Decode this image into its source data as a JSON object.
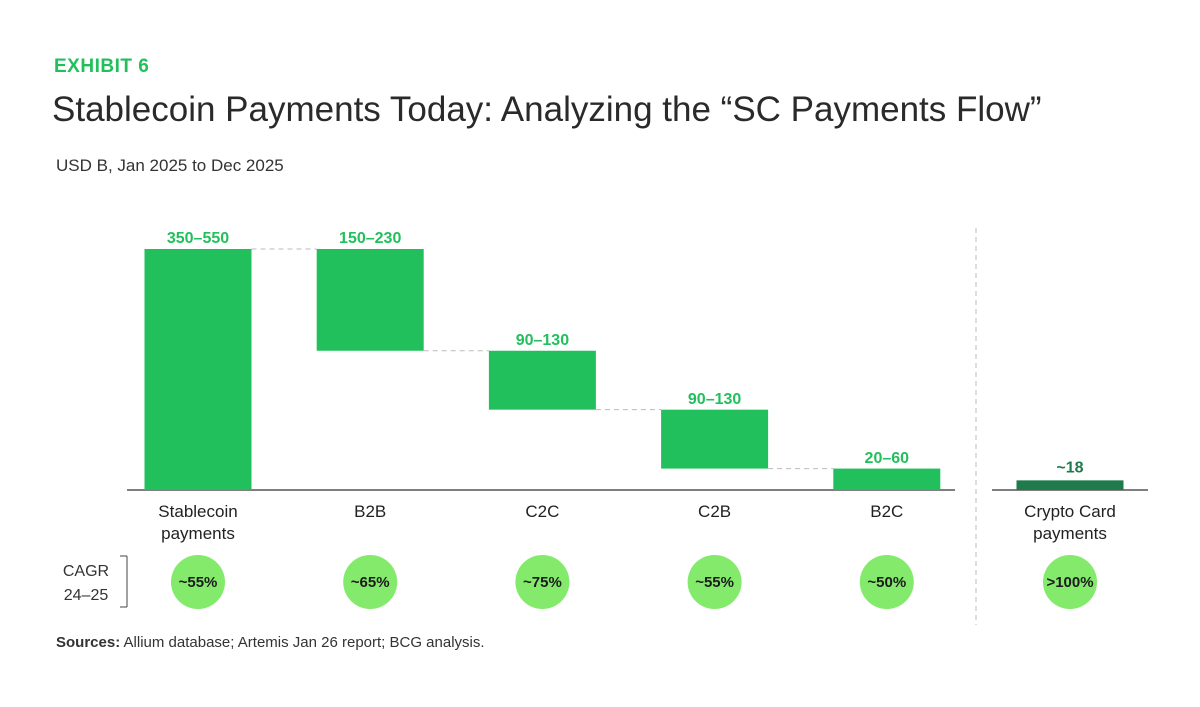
{
  "header": {
    "exhibit": "EXHIBIT 6",
    "title": "Stablecoin Payments Today: Analyzing the “SC Payments Flow”",
    "subtitle": "USD B, Jan 2025 to Dec 2025"
  },
  "cagr_title": [
    "CAGR",
    "24–25"
  ],
  "sources": {
    "label": "Sources:",
    "text": "Allium database; Artemis Jan 26 report; BCG analysis."
  },
  "chart_data": [
    {
      "type": "waterfall",
      "categories": [
        "Stablecoin payments",
        "B2B",
        "C2C",
        "C2B",
        "B2C"
      ],
      "values": [
        450,
        190,
        110,
        110,
        40
      ],
      "value_labels": [
        "350–550",
        "150–230",
        "90–130",
        "90–130",
        "20–60"
      ],
      "color": "#22c05c",
      "cagr_labels": [
        "~55%",
        "~65%",
        "~75%",
        "~55%",
        "~50%"
      ]
    },
    {
      "type": "bar",
      "categories": [
        "Crypto Card payments"
      ],
      "values": [
        18
      ],
      "value_labels": [
        "~18"
      ],
      "color": "#1f7a4c",
      "cagr_labels": [
        ">100%"
      ]
    }
  ]
}
